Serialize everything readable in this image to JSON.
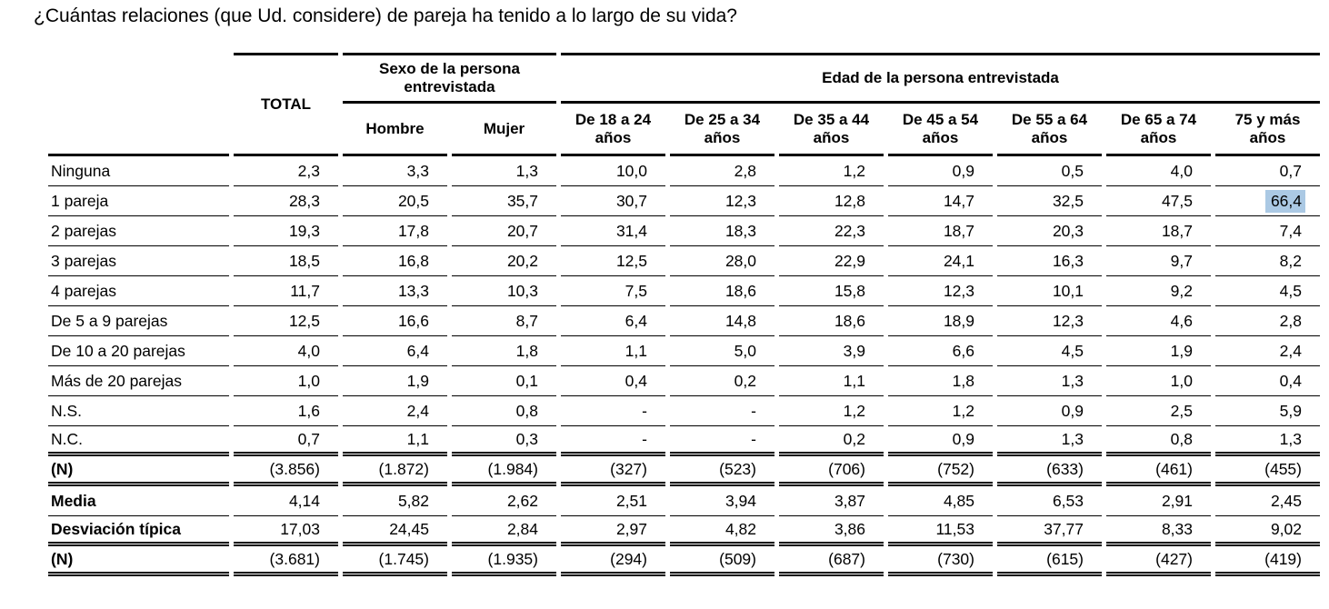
{
  "title": "¿Cuántas relaciones (que Ud. considere) de pareja ha tenido a lo largo de su vida?",
  "highlight_color": "#abc9e4",
  "table": {
    "header": {
      "total": "TOTAL",
      "sex_group": "Sexo de la persona entrevistada",
      "age_group": "Edad de la persona entrevistada",
      "sub_headers": [
        "Hombre",
        "Mujer",
        "De 18 a 24 años",
        "De 25 a 34 años",
        "De 35 a 44 años",
        "De 45 a 54 años",
        "De 55 a 64 años",
        "De 65 a 74 años",
        "75 y más años"
      ]
    },
    "rows": [
      {
        "label": "Ninguna",
        "values": [
          "2,3",
          "3,3",
          "1,3",
          "10,0",
          "2,8",
          "1,2",
          "0,9",
          "0,5",
          "4,0",
          "0,7"
        ]
      },
      {
        "label": "1 pareja",
        "values": [
          "28,3",
          "20,5",
          "35,7",
          "30,7",
          "12,3",
          "12,8",
          "14,7",
          "32,5",
          "47,5",
          "66,4"
        ],
        "highlight_col": 9
      },
      {
        "label": "2 parejas",
        "values": [
          "19,3",
          "17,8",
          "20,7",
          "31,4",
          "18,3",
          "22,3",
          "18,7",
          "20,3",
          "18,7",
          "7,4"
        ]
      },
      {
        "label": "3 parejas",
        "values": [
          "18,5",
          "16,8",
          "20,2",
          "12,5",
          "28,0",
          "22,9",
          "24,1",
          "16,3",
          "9,7",
          "8,2"
        ]
      },
      {
        "label": "4 parejas",
        "values": [
          "11,7",
          "13,3",
          "10,3",
          "7,5",
          "18,6",
          "15,8",
          "12,3",
          "10,1",
          "9,2",
          "4,5"
        ]
      },
      {
        "label": "De 5 a 9 parejas",
        "values": [
          "12,5",
          "16,6",
          "8,7",
          "6,4",
          "14,8",
          "18,6",
          "18,9",
          "12,3",
          "4,6",
          "2,8"
        ]
      },
      {
        "label": "De 10 a 20 parejas",
        "values": [
          "4,0",
          "6,4",
          "1,8",
          "1,1",
          "5,0",
          "3,9",
          "6,6",
          "4,5",
          "1,9",
          "2,4"
        ]
      },
      {
        "label": "Más de 20 parejas",
        "values": [
          "1,0",
          "1,9",
          "0,1",
          "0,4",
          "0,2",
          "1,1",
          "1,8",
          "1,3",
          "1,0",
          "0,4"
        ]
      },
      {
        "label": "N.S.",
        "values": [
          "1,6",
          "2,4",
          "0,8",
          "-",
          "-",
          "1,2",
          "1,2",
          "0,9",
          "2,5",
          "5,9"
        ]
      },
      {
        "label": "N.C.",
        "values": [
          "0,7",
          "1,1",
          "0,3",
          "-",
          "-",
          "0,2",
          "0,9",
          "1,3",
          "0,8",
          "1,3"
        ],
        "sep": "double"
      },
      {
        "label": "(N)",
        "bold": true,
        "values": [
          "(3.856)",
          "(1.872)",
          "(1.984)",
          "(327)",
          "(523)",
          "(706)",
          "(752)",
          "(633)",
          "(461)",
          "(455)"
        ],
        "sep": "double"
      },
      {
        "label": "Media",
        "bold": true,
        "values": [
          "4,14",
          "5,82",
          "2,62",
          "2,51",
          "3,94",
          "3,87",
          "4,85",
          "6,53",
          "2,91",
          "2,45"
        ]
      },
      {
        "label": "Desviación típica",
        "bold": true,
        "values": [
          "17,03",
          "24,45",
          "2,84",
          "2,97",
          "4,82",
          "3,86",
          "11,53",
          "37,77",
          "8,33",
          "9,02"
        ],
        "sep": "double"
      },
      {
        "label": "(N)",
        "bold": true,
        "values": [
          "(3.681)",
          "(1.745)",
          "(1.935)",
          "(294)",
          "(509)",
          "(687)",
          "(730)",
          "(615)",
          "(427)",
          "(419)"
        ],
        "sep": "double"
      }
    ]
  }
}
